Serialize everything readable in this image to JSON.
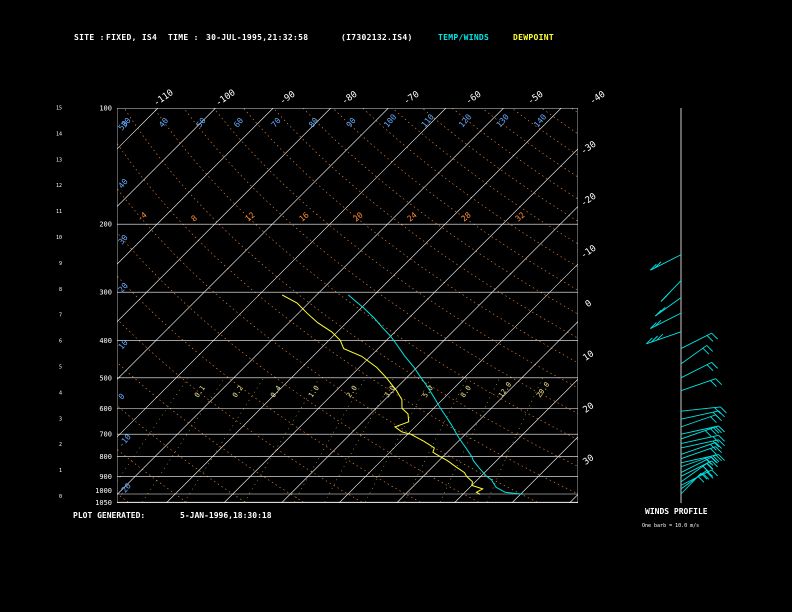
{
  "header": {
    "site_label": "SITE :",
    "site_value": "FIXED, IS4",
    "time_label": "TIME :",
    "time_value": "30-JUL-1995,21:32:58",
    "file_id": "(I7302132.IS4)",
    "temp_winds_label": "TEMP/WINDS",
    "dewpoint_label": "DEWPOINT"
  },
  "footer": {
    "generated_label": "PLOT GENERATED:",
    "generated_value": "5-JAN-1996,18:30:18",
    "winds_profile_label": "WINDS PROFILE",
    "barbs_note": "One barb = 10.0 m/s"
  },
  "colors": {
    "temp": "#00e5e5",
    "dewpoint": "#ffff33",
    "grid": "#ffffff",
    "dry_adiabat": "#ff8c33",
    "moist_adiabat": "#ff8c33",
    "mixing_ratio": "#ffff66",
    "wind_barb": "#00e5e5",
    "height_labels": "#66aaff"
  },
  "chart_data": {
    "type": "skew-t",
    "ylabel_left": "Height (km)",
    "height_ticks_km": [
      "0",
      "1",
      "2",
      "3",
      "4",
      "5",
      "6",
      "7",
      "8",
      "9",
      "10",
      "11",
      "12",
      "13",
      "14",
      "15"
    ],
    "pressure_levels": [
      1050,
      1000,
      900,
      800,
      700,
      600,
      500,
      400,
      300,
      200,
      100
    ],
    "pressure_labels": [
      "1050",
      "1000",
      "900",
      "800",
      "700",
      "600",
      "500",
      "400",
      "300",
      "200",
      "100"
    ],
    "temperature_labels_top": [
      "-110",
      "-100",
      "-90",
      "-80",
      "-70",
      "-60",
      "-50",
      "-40"
    ],
    "temperature_labels_right": [
      "-30",
      "-20",
      "-10",
      "0",
      "10",
      "20",
      "30"
    ],
    "dry_adiabat_labels": [
      "-50",
      "-40",
      "-30",
      "-20",
      "-10",
      "0",
      "10",
      "20",
      "30",
      "40",
      "50",
      "60",
      "70",
      "80",
      "90",
      "100",
      "110",
      "120",
      "130",
      "140",
      "150",
      "160",
      "170",
      "180",
      "190",
      "200"
    ],
    "mixing_ratio_labels": [
      "0.1",
      "0.2",
      "0.4",
      "1.0",
      "2.0",
      "3.0",
      "5.0",
      "8.0",
      "12.0",
      "20.0"
    ],
    "moist_adiabat_labels": [
      "-4",
      "8",
      "12",
      "16",
      "20",
      "24",
      "28",
      "32"
    ],
    "series": [
      {
        "name": "TEMP/WINDS",
        "points": [
          {
            "p": 1002,
            "t": 30.5
          },
          {
            "p": 990,
            "t": 27.0
          },
          {
            "p": 960,
            "t": 24.5
          },
          {
            "p": 920,
            "t": 22.5
          },
          {
            "p": 900,
            "t": 21.0
          },
          {
            "p": 860,
            "t": 18.5
          },
          {
            "p": 820,
            "t": 16.0
          },
          {
            "p": 800,
            "t": 15.0
          },
          {
            "p": 760,
            "t": 12.5
          },
          {
            "p": 720,
            "t": 9.8
          },
          {
            "p": 700,
            "t": 8.5
          },
          {
            "p": 660,
            "t": 5.8
          },
          {
            "p": 620,
            "t": 2.8
          },
          {
            "p": 600,
            "t": 1.2
          },
          {
            "p": 560,
            "t": -2.0
          },
          {
            "p": 520,
            "t": -5.5
          },
          {
            "p": 500,
            "t": -7.5
          },
          {
            "p": 470,
            "t": -10.5
          },
          {
            "p": 440,
            "t": -14.0
          },
          {
            "p": 410,
            "t": -17.5
          },
          {
            "p": 390,
            "t": -20.0
          },
          {
            "p": 370,
            "t": -23.0
          },
          {
            "p": 350,
            "t": -26.0
          },
          {
            "p": 330,
            "t": -29.5
          },
          {
            "p": 315,
            "t": -32.5
          },
          {
            "p": 305,
            "t": -34.5
          }
        ]
      },
      {
        "name": "DEWPOINT",
        "points": [
          {
            "p": 1002,
            "t": 23.0
          },
          {
            "p": 990,
            "t": 22.0
          },
          {
            "p": 970,
            "t": 22.5
          },
          {
            "p": 950,
            "t": 20.0
          },
          {
            "p": 930,
            "t": 19.5
          },
          {
            "p": 900,
            "t": 17.5
          },
          {
            "p": 880,
            "t": 16.5
          },
          {
            "p": 850,
            "t": 14.0
          },
          {
            "p": 820,
            "t": 11.5
          },
          {
            "p": 800,
            "t": 9.5
          },
          {
            "p": 780,
            "t": 7.5
          },
          {
            "p": 760,
            "t": 7.0
          },
          {
            "p": 730,
            "t": 4.0
          },
          {
            "p": 700,
            "t": 0.5
          },
          {
            "p": 690,
            "t": -1.5
          },
          {
            "p": 670,
            "t": -3.5
          },
          {
            "p": 650,
            "t": -2.0
          },
          {
            "p": 620,
            "t": -3.5
          },
          {
            "p": 600,
            "t": -5.5
          },
          {
            "p": 570,
            "t": -7.0
          },
          {
            "p": 540,
            "t": -9.5
          },
          {
            "p": 500,
            "t": -13.5
          },
          {
            "p": 470,
            "t": -17.0
          },
          {
            "p": 440,
            "t": -21.5
          },
          {
            "p": 420,
            "t": -26.0
          },
          {
            "p": 400,
            "t": -28.0
          },
          {
            "p": 380,
            "t": -31.0
          },
          {
            "p": 360,
            "t": -35.0
          },
          {
            "p": 340,
            "t": -38.5
          },
          {
            "p": 320,
            "t": -42.0
          },
          {
            "p": 305,
            "t": -46.0
          }
        ]
      }
    ],
    "winds": [
      {
        "p": 1000,
        "speed_ms": 15,
        "dir_deg": 210
      },
      {
        "p": 970,
        "speed_ms": 20,
        "dir_deg": 220
      },
      {
        "p": 950,
        "speed_ms": 20,
        "dir_deg": 230
      },
      {
        "p": 930,
        "speed_ms": 20,
        "dir_deg": 220
      },
      {
        "p": 900,
        "speed_ms": 30,
        "dir_deg": 230
      },
      {
        "p": 880,
        "speed_ms": 20,
        "dir_deg": 230
      },
      {
        "p": 850,
        "speed_ms": 30,
        "dir_deg": 240
      },
      {
        "p": 830,
        "speed_ms": 20,
        "dir_deg": 250
      },
      {
        "p": 810,
        "speed_ms": 20,
        "dir_deg": 240
      },
      {
        "p": 790,
        "speed_ms": 20,
        "dir_deg": 240
      },
      {
        "p": 760,
        "speed_ms": 20,
        "dir_deg": 250
      },
      {
        "p": 740,
        "speed_ms": 20,
        "dir_deg": 250
      },
      {
        "p": 720,
        "speed_ms": 30,
        "dir_deg": 240
      },
      {
        "p": 700,
        "speed_ms": 20,
        "dir_deg": 250
      },
      {
        "p": 670,
        "speed_ms": 20,
        "dir_deg": 240
      },
      {
        "p": 640,
        "speed_ms": 20,
        "dir_deg": 250
      },
      {
        "p": 610,
        "speed_ms": 20,
        "dir_deg": 260
      },
      {
        "p": 540,
        "speed_ms": 20,
        "dir_deg": 240
      },
      {
        "p": 500,
        "speed_ms": 20,
        "dir_deg": 230
      },
      {
        "p": 460,
        "speed_ms": 20,
        "dir_deg": 220
      },
      {
        "p": 420,
        "speed_ms": 20,
        "dir_deg": 230
      },
      {
        "p": 380,
        "speed_ms": 30,
        "dir_deg": 300
      },
      {
        "p": 340,
        "speed_ms": 20,
        "dir_deg": 310
      },
      {
        "p": 310,
        "speed_ms": 20,
        "dir_deg": 320
      },
      {
        "p": 280,
        "speed_ms": 20,
        "dir_deg": 330
      },
      {
        "p": 240,
        "speed_ms": 20,
        "dir_deg": 310
      }
    ],
    "pressure_range_hpa": [
      1050,
      100
    ],
    "temperature_range_bottom_c": [
      -40,
      40
    ],
    "y_scale": "log-pressure",
    "grid": true
  }
}
